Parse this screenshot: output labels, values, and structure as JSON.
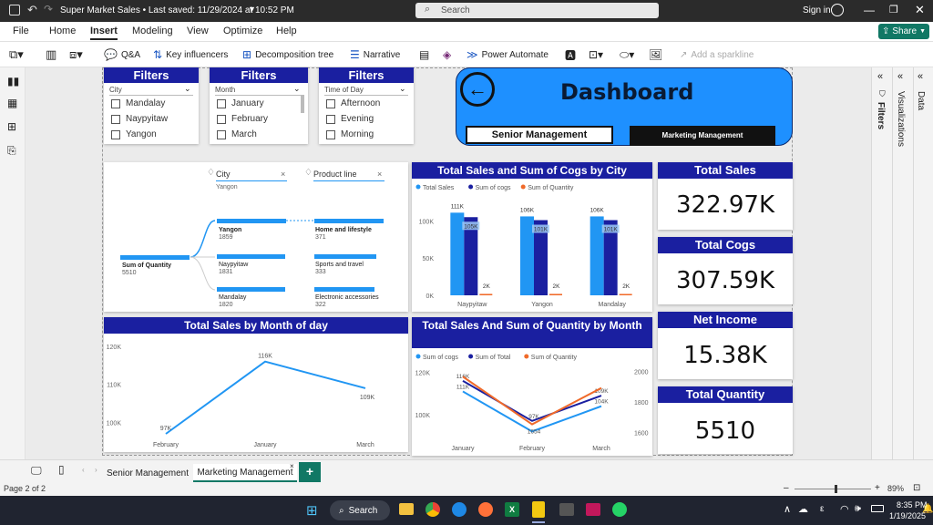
{
  "titlebar": {
    "title": "Super Market Sales • Last saved: 11/29/2024 at 10:52 PM",
    "search": "Search",
    "signin": "Sign in"
  },
  "menu": [
    "File",
    "Home",
    "Insert",
    "Modeling",
    "View",
    "Optimize",
    "Help"
  ],
  "share": "Share",
  "ribbon": {
    "qa": "Q&A",
    "key_influencers": "Key influencers",
    "decomp": "Decomposition tree",
    "narrative": "Narrative",
    "power_automate": "Power Automate",
    "sparkline": "Add a sparkline"
  },
  "slicers": [
    {
      "title": "Filters",
      "field": "City",
      "items": [
        "Mandalay",
        "Naypyitaw",
        "Yangon"
      ]
    },
    {
      "title": "Filters",
      "field": "Month",
      "items": [
        "January",
        "February",
        "March"
      ]
    },
    {
      "title": "Filters",
      "field": "Time of Day",
      "items": [
        "Afternoon",
        "Evening",
        "Morning"
      ]
    }
  ],
  "dashboard": {
    "title": "Dashboard",
    "btn_senior": "Senior Management",
    "btn_marketing": "Marketing Management"
  },
  "decomp": {
    "city_label": "City",
    "city_value": "Yangon",
    "product_label": "Product line",
    "root_label": "Sum of Quantity",
    "root_value": "5510",
    "cities": [
      {
        "name": "Yangon",
        "value": "1859"
      },
      {
        "name": "Naypyitaw",
        "value": "1831"
      },
      {
        "name": "Mandalay",
        "value": "1820"
      }
    ],
    "products": [
      {
        "name": "Home and lifestyle",
        "value": "371"
      },
      {
        "name": "Sports and travel",
        "value": "333"
      },
      {
        "name": "Electronic accessories",
        "value": "322"
      }
    ]
  },
  "kpis": [
    {
      "title": "Total Sales",
      "value": "322.97K"
    },
    {
      "title": "Total Cogs",
      "value": "307.59K"
    },
    {
      "title": "Net Income",
      "value": "15.38K"
    },
    {
      "title": "Total Quantity",
      "value": "5510"
    }
  ],
  "chart_titles": {
    "city": "Total Sales and Sum of Cogs by City",
    "month": "Total Sales by Month of day",
    "combo": "Total Sales And Sum of Quantity by Month"
  },
  "chart_data": [
    {
      "type": "bar",
      "title": "Total Sales and Sum of Cogs by City",
      "categories": [
        "Naypyitaw",
        "Yangon",
        "Mandalay"
      ],
      "series": [
        {
          "name": "Total Sales",
          "color": "#2196f3",
          "values": [
            111,
            106,
            106
          ],
          "labels": [
            "111K",
            "106K",
            "106K"
          ]
        },
        {
          "name": "Sum of cogs",
          "color": "#1a1fa0",
          "values": [
            105,
            101,
            101
          ],
          "labels": [
            "105K",
            "101K",
            "101K"
          ]
        },
        {
          "name": "Sum of Quantity",
          "color": "#f06a2a",
          "values": [
            1.9,
            1.9,
            1.8
          ],
          "labels": [
            "2K",
            "2K",
            "2K"
          ]
        }
      ],
      "yticks": [
        "0K",
        "50K",
        "100K"
      ],
      "ylim": [
        0,
        120
      ]
    },
    {
      "type": "line",
      "title": "Total Sales by Month of day",
      "categories": [
        "February",
        "January",
        "March"
      ],
      "series": [
        {
          "name": "Total Sales",
          "color": "#2196f3",
          "values": [
            97,
            116,
            109
          ],
          "labels": [
            "97K",
            "116K",
            "109K"
          ]
        }
      ],
      "yticks": [
        "100K",
        "110K",
        "120K"
      ],
      "ylim": [
        97,
        120
      ]
    },
    {
      "type": "line",
      "title": "Total Sales And Sum of Quantity by Month",
      "categories": [
        "January",
        "February",
        "March"
      ],
      "series": [
        {
          "name": "Sum of cogs",
          "color": "#2196f3",
          "values": [
            111,
            92,
            104
          ],
          "labels": [
            "111K",
            "",
            "104K"
          ]
        },
        {
          "name": "Sum of Total",
          "color": "#1a1fa0",
          "values": [
            116,
            97,
            109
          ],
          "labels": [
            "116K",
            "97K",
            "109K"
          ]
        },
        {
          "name": "Sum of Quantity",
          "color": "#f06a2a",
          "values": [
            1965,
            1654,
            1891
          ],
          "labels": [
            "",
            "1654",
            ""
          ]
        }
      ],
      "yticks": [
        "100K",
        "120K"
      ],
      "y2ticks": [
        "1600",
        "1800",
        "2000"
      ],
      "ylim": [
        90,
        122
      ],
      "y2lim": [
        1580,
        2020
      ]
    }
  ],
  "panes": {
    "filters": "Filters",
    "visualizations": "Visualizations",
    "data": "Data"
  },
  "pages": {
    "tab1": "Senior Management",
    "tab2": "Marketing Management",
    "page_info": "Page 2 of 2",
    "zoom": "89%"
  },
  "taskbar": {
    "search": "Search",
    "time": "8:35 PM",
    "date": "1/19/2025"
  }
}
